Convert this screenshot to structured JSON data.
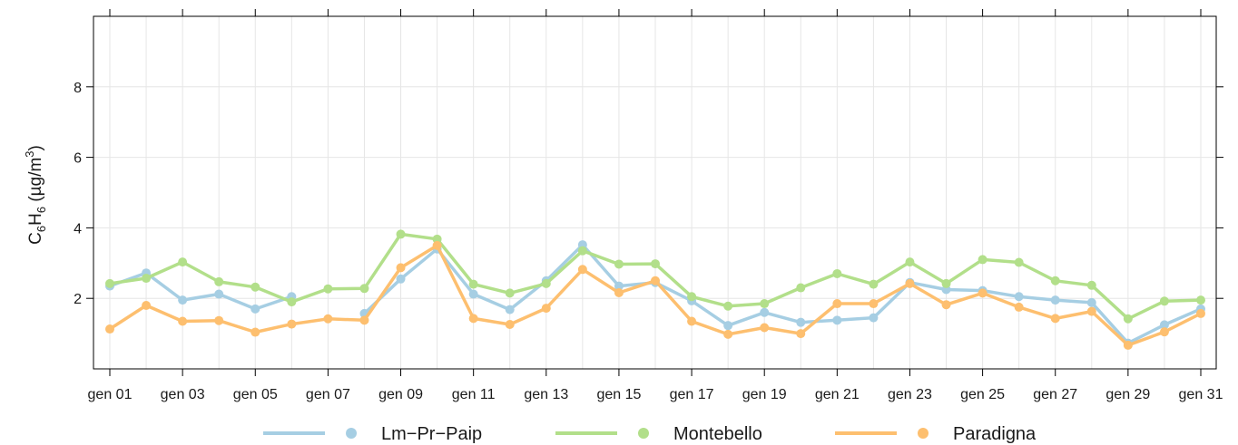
{
  "chart_data": {
    "type": "line",
    "title": "",
    "xlabel": "",
    "ylabel": {
      "c": "C",
      "c_sub": "6",
      "h": "H",
      "h_sub": "6",
      "unit_open": " (µg/m",
      "unit_sup": "3",
      "unit_close": ")"
    },
    "ylim": [
      0,
      10
    ],
    "y_ticks": [
      2,
      4,
      6,
      8
    ],
    "grid": true,
    "legend_position": "bottom",
    "x": [
      "gen 01",
      "gen 02",
      "gen 03",
      "gen 04",
      "gen 05",
      "gen 06",
      "gen 07",
      "gen 08",
      "gen 09",
      "gen 10",
      "gen 11",
      "gen 12",
      "gen 13",
      "gen 14",
      "gen 15",
      "gen 16",
      "gen 17",
      "gen 18",
      "gen 19",
      "gen 20",
      "gen 21",
      "gen 22",
      "gen 23",
      "gen 24",
      "gen 25",
      "gen 26",
      "gen 27",
      "gen 28",
      "gen 29",
      "gen 30",
      "gen 31"
    ],
    "x_tick_labels": [
      "gen 01",
      "gen 03",
      "gen 05",
      "gen 07",
      "gen 09",
      "gen 11",
      "gen 13",
      "gen 15",
      "gen 17",
      "gen 19",
      "gen 21",
      "gen 23",
      "gen 25",
      "gen 27",
      "gen 29",
      "gen 31"
    ],
    "series": [
      {
        "name": "Lm−Pr−Paip",
        "color": "#a6cee3",
        "values": [
          2.35,
          2.72,
          1.95,
          2.12,
          1.7,
          2.05,
          null,
          1.57,
          2.55,
          3.4,
          2.12,
          1.68,
          2.5,
          3.52,
          2.35,
          2.45,
          1.93,
          1.23,
          1.6,
          1.32,
          1.38,
          1.45,
          2.45,
          2.25,
          2.22,
          2.05,
          1.95,
          1.88,
          0.73,
          1.25,
          1.7
        ]
      },
      {
        "name": "Montebello",
        "color": "#b2df8a",
        "values": [
          2.42,
          2.57,
          3.03,
          2.47,
          2.32,
          1.9,
          2.27,
          2.28,
          3.82,
          3.68,
          2.4,
          2.15,
          2.42,
          3.35,
          2.97,
          2.98,
          2.05,
          1.78,
          1.85,
          2.3,
          2.7,
          2.4,
          3.03,
          2.42,
          3.1,
          3.02,
          2.5,
          2.37,
          1.42,
          1.92,
          1.95
        ]
      },
      {
        "name": "Paradigna",
        "color": "#fdbf6f",
        "values": [
          1.13,
          1.8,
          1.35,
          1.37,
          1.04,
          1.27,
          1.42,
          1.38,
          2.87,
          3.5,
          1.43,
          1.26,
          1.72,
          2.82,
          2.16,
          2.5,
          1.35,
          0.98,
          1.17,
          1.0,
          1.85,
          1.85,
          2.42,
          1.82,
          2.15,
          1.75,
          1.43,
          1.63,
          0.67,
          1.05,
          1.57
        ]
      }
    ]
  }
}
